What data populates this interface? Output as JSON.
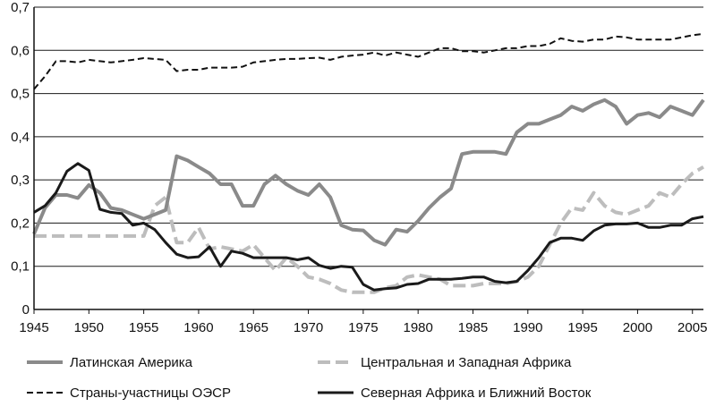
{
  "chart_data": {
    "type": "line",
    "title": "",
    "xlabel": "",
    "ylabel": "",
    "xlim": [
      1945,
      2006
    ],
    "ylim": [
      0,
      0.7
    ],
    "x_ticks": [
      "1945",
      "1950",
      "1955",
      "1960",
      "1965",
      "1970",
      "1975",
      "1980",
      "1985",
      "1990",
      "1995",
      "2000",
      "2005"
    ],
    "y_ticks": [
      "0",
      "0,1",
      "0,2",
      "0,3",
      "0,4",
      "0,5",
      "0,6",
      "0,7"
    ],
    "grid": "horizontal",
    "legend_position": "bottom",
    "x": [
      1945,
      1946,
      1947,
      1948,
      1949,
      1950,
      1951,
      1952,
      1953,
      1954,
      1955,
      1956,
      1957,
      1958,
      1959,
      1960,
      1961,
      1962,
      1963,
      1964,
      1965,
      1966,
      1967,
      1968,
      1969,
      1970,
      1971,
      1972,
      1973,
      1974,
      1975,
      1976,
      1977,
      1978,
      1979,
      1980,
      1981,
      1982,
      1983,
      1984,
      1985,
      1986,
      1987,
      1988,
      1989,
      1990,
      1991,
      1992,
      1993,
      1994,
      1995,
      1996,
      1997,
      1998,
      1999,
      2000,
      2001,
      2002,
      2003,
      2004,
      2005,
      2006
    ],
    "series": [
      {
        "name": "Латинская Америка",
        "style": "solid",
        "color": "#8a8a8a",
        "values": [
          0.175,
          0.235,
          0.265,
          0.265,
          0.258,
          0.288,
          0.27,
          0.235,
          0.23,
          0.22,
          0.21,
          0.22,
          0.23,
          0.355,
          0.345,
          0.33,
          0.315,
          0.29,
          0.29,
          0.24,
          0.24,
          0.29,
          0.31,
          0.29,
          0.275,
          0.265,
          0.29,
          0.26,
          0.195,
          0.185,
          0.183,
          0.16,
          0.15,
          0.185,
          0.18,
          0.205,
          0.235,
          0.26,
          0.28,
          0.36,
          0.365,
          0.365,
          0.365,
          0.36,
          0.41,
          0.43,
          0.43,
          0.44,
          0.45,
          0.47,
          0.46,
          0.475,
          0.485,
          0.47,
          0.43,
          0.45,
          0.455,
          0.445,
          0.47,
          0.46,
          0.45,
          0.485
        ]
      },
      {
        "name": "Центральная и Западная Африка",
        "style": "dashed",
        "color": "#bdbdbd",
        "values": [
          0.17,
          0.17,
          0.17,
          0.17,
          0.17,
          0.17,
          0.17,
          0.17,
          0.17,
          0.17,
          0.17,
          0.24,
          0.26,
          0.155,
          0.155,
          0.19,
          0.14,
          0.145,
          0.14,
          0.135,
          0.15,
          0.12,
          0.09,
          0.12,
          0.1,
          0.075,
          0.07,
          0.06,
          0.045,
          0.04,
          0.04,
          0.04,
          0.05,
          0.055,
          0.075,
          0.08,
          0.075,
          0.07,
          0.055,
          0.055,
          0.055,
          0.06,
          0.06,
          0.06,
          0.065,
          0.075,
          0.1,
          0.15,
          0.2,
          0.235,
          0.23,
          0.27,
          0.24,
          0.225,
          0.22,
          0.23,
          0.24,
          0.27,
          0.26,
          0.29,
          0.315,
          0.33
        ]
      },
      {
        "name": "Страны-участницы ОЭСР",
        "style": "dotted",
        "color": "#111111",
        "values": [
          0.51,
          0.54,
          0.575,
          0.575,
          0.572,
          0.578,
          0.575,
          0.572,
          0.575,
          0.578,
          0.582,
          0.58,
          0.578,
          0.552,
          0.555,
          0.555,
          0.56,
          0.56,
          0.56,
          0.562,
          0.572,
          0.575,
          0.578,
          0.58,
          0.58,
          0.582,
          0.583,
          0.578,
          0.585,
          0.588,
          0.59,
          0.595,
          0.588,
          0.595,
          0.59,
          0.585,
          0.595,
          0.605,
          0.605,
          0.598,
          0.598,
          0.595,
          0.6,
          0.605,
          0.605,
          0.61,
          0.61,
          0.615,
          0.628,
          0.622,
          0.62,
          0.625,
          0.625,
          0.632,
          0.63,
          0.625,
          0.625,
          0.625,
          0.625,
          0.63,
          0.635,
          0.638
        ]
      },
      {
        "name": "Северная Африка и Ближний Восток",
        "style": "solid",
        "color": "#1a1a1a",
        "values": [
          0.225,
          0.24,
          0.27,
          0.32,
          0.338,
          0.322,
          0.232,
          0.225,
          0.222,
          0.195,
          0.2,
          0.185,
          0.155,
          0.128,
          0.12,
          0.122,
          0.145,
          0.1,
          0.135,
          0.13,
          0.12,
          0.12,
          0.12,
          0.12,
          0.115,
          0.12,
          0.102,
          0.095,
          0.1,
          0.098,
          0.058,
          0.045,
          0.048,
          0.05,
          0.058,
          0.06,
          0.07,
          0.07,
          0.07,
          0.072,
          0.075,
          0.075,
          0.065,
          0.062,
          0.065,
          0.09,
          0.12,
          0.155,
          0.165,
          0.165,
          0.16,
          0.182,
          0.195,
          0.198,
          0.198,
          0.2,
          0.19,
          0.19,
          0.195,
          0.195,
          0.21,
          0.215
        ]
      }
    ]
  }
}
